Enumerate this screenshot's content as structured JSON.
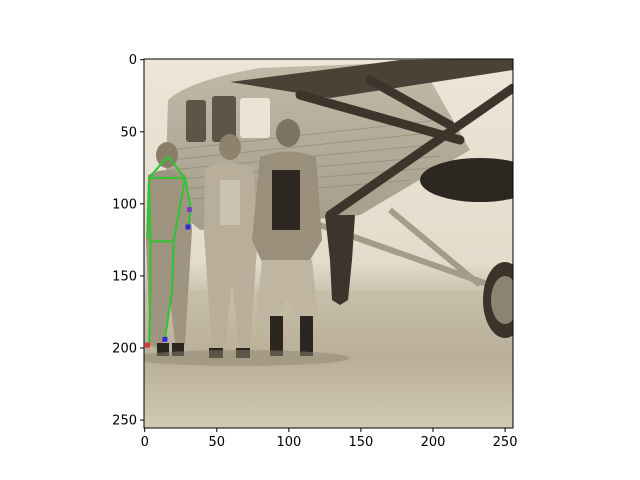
{
  "figure": {
    "x_ticks": [
      "0",
      "50",
      "100",
      "150",
      "200",
      "250"
    ],
    "y_ticks": [
      "0",
      "50",
      "100",
      "150",
      "200",
      "250"
    ],
    "image_size": [
      256,
      256
    ],
    "content": "sepia photograph: three men in 1920s suits and knickerbockers standing in front of a monoplane; a green pose skeleton overlaid on the leftmost man"
  },
  "colors": {
    "axes": "#000000",
    "pose_line": "#2ec52e",
    "keypoint_blue": "#2b2bd6",
    "keypoint_red": "#e0303a",
    "keypoint_purple": "#7a3fc4"
  },
  "pose": {
    "keypoints": [
      {
        "name": "head",
        "x": 16,
        "y": 67
      },
      {
        "name": "right_shoulder",
        "x": 3,
        "y": 82
      },
      {
        "name": "left_shoulder",
        "x": 28,
        "y": 82
      },
      {
        "name": "right_elbow",
        "x": 2,
        "y": 124
      },
      {
        "name": "left_elbow",
        "x": 32,
        "y": 103
      },
      {
        "name": "left_wrist",
        "x": 30,
        "y": 117
      },
      {
        "name": "right_hip",
        "x": 4,
        "y": 126
      },
      {
        "name": "left_hip",
        "x": 20,
        "y": 126
      },
      {
        "name": "right_knee",
        "x": 4,
        "y": 162
      },
      {
        "name": "left_knee",
        "x": 19,
        "y": 160
      },
      {
        "name": "right_ankle",
        "x": 3,
        "y": 197
      },
      {
        "name": "left_ankle",
        "x": 14,
        "y": 194
      }
    ],
    "edges": [
      [
        "head",
        "right_shoulder"
      ],
      [
        "head",
        "left_shoulder"
      ],
      [
        "right_shoulder",
        "left_shoulder"
      ],
      [
        "right_shoulder",
        "right_elbow"
      ],
      [
        "left_shoulder",
        "left_elbow"
      ],
      [
        "left_elbow",
        "left_wrist"
      ],
      [
        "right_shoulder",
        "right_hip"
      ],
      [
        "left_shoulder",
        "left_hip"
      ],
      [
        "right_hip",
        "left_hip"
      ],
      [
        "right_hip",
        "right_knee"
      ],
      [
        "right_knee",
        "right_ankle"
      ],
      [
        "left_hip",
        "left_knee"
      ],
      [
        "left_knee",
        "left_ankle"
      ]
    ],
    "markers": [
      {
        "x": 30,
        "y": 116,
        "color": "blue"
      },
      {
        "x": 14,
        "y": 194,
        "color": "blue"
      },
      {
        "x": 2,
        "y": 198,
        "color": "red"
      },
      {
        "x": 31,
        "y": 104,
        "color": "purple"
      }
    ]
  }
}
